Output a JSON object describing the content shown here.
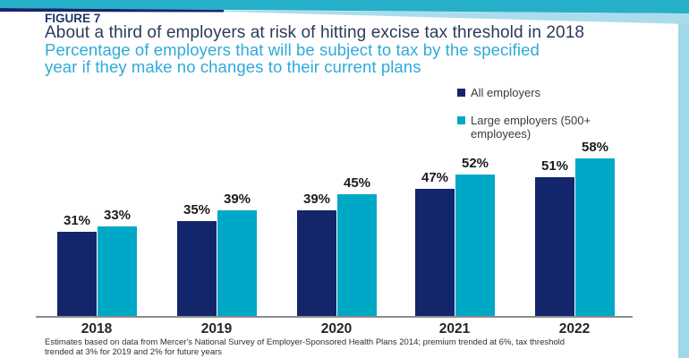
{
  "header": {
    "figure_label": "FIGURE 7",
    "title": "About a third of employers at risk of hitting excise tax threshold in 2018",
    "subtitle_lines": [
      "Percentage of employers that will be subject to tax by the specified",
      "year if they make no changes to their current plans"
    ]
  },
  "legend": {
    "items": [
      {
        "label": "All employers",
        "color": "#14266b"
      },
      {
        "label": "Large employers (500+ employees)",
        "color": "#00a8c8"
      }
    ]
  },
  "chart_data": {
    "type": "bar",
    "categories": [
      "2018",
      "2019",
      "2020",
      "2021",
      "2022"
    ],
    "series": [
      {
        "name": "All employers",
        "values": [
          31,
          35,
          39,
          47,
          51
        ],
        "color": "#14266b"
      },
      {
        "name": "Large employers (500+ employees)",
        "values": [
          33,
          39,
          45,
          52,
          58
        ],
        "color": "#00a8c8"
      }
    ],
    "value_suffix": "%",
    "ylim": [
      0,
      60
    ],
    "grid": false,
    "legend_position": "top-right",
    "data_labels": true
  },
  "footnote": {
    "lines": [
      "Estimates based on data from Mercer's National Survey of Employer-Sponsored Health Plans 2014; premium trended at 6%, tax threshold",
      "trended at 3% for 2019 and 2% for future years"
    ]
  },
  "colors": {
    "figure_label_navy": "#1c3668",
    "title_navy": "#2c3a5c",
    "subtitle_blue": "#2fa9dc",
    "header_teal": "#26afc8",
    "header_light_band": "#abdcec",
    "header_navy_line": "#14266b",
    "right_stripe": "#9ed8ea",
    "axis_gray": "#8c8c8c"
  }
}
